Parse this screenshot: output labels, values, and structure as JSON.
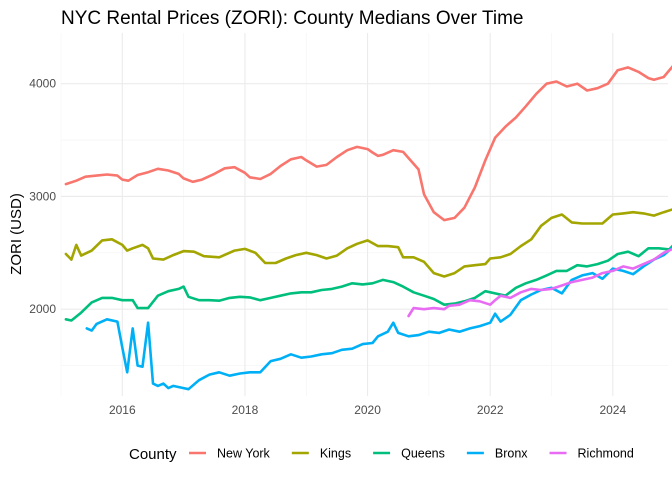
{
  "chart_data": {
    "type": "line",
    "title": "NYC Rental Prices (ZORI): County Medians Over Time",
    "xlabel": "",
    "ylabel": "ZORI (USD)",
    "xlim": [
      2015.0,
      2024.9
    ],
    "ylim": [
      1230,
      4450
    ],
    "x_ticks": [
      2016,
      2018,
      2020,
      2022,
      2024
    ],
    "y_ticks": [
      2000,
      3000,
      4000
    ],
    "grid": true,
    "legend": {
      "title": "County",
      "position": "bottom"
    },
    "series": [
      {
        "name": "New York",
        "color": "#F8766D",
        "points": [
          [
            2015.08,
            3110
          ],
          [
            2015.25,
            3140
          ],
          [
            2015.4,
            3175
          ],
          [
            2015.58,
            3185
          ],
          [
            2015.75,
            3195
          ],
          [
            2015.92,
            3185
          ],
          [
            2016.0,
            3150
          ],
          [
            2016.1,
            3140
          ],
          [
            2016.25,
            3190
          ],
          [
            2016.42,
            3215
          ],
          [
            2016.58,
            3245
          ],
          [
            2016.75,
            3230
          ],
          [
            2016.92,
            3200
          ],
          [
            2017.0,
            3160
          ],
          [
            2017.15,
            3130
          ],
          [
            2017.3,
            3150
          ],
          [
            2017.5,
            3200
          ],
          [
            2017.67,
            3250
          ],
          [
            2017.83,
            3260
          ],
          [
            2018.0,
            3210
          ],
          [
            2018.08,
            3170
          ],
          [
            2018.25,
            3155
          ],
          [
            2018.42,
            3200
          ],
          [
            2018.58,
            3270
          ],
          [
            2018.75,
            3330
          ],
          [
            2018.92,
            3350
          ],
          [
            2019.0,
            3320
          ],
          [
            2019.17,
            3265
          ],
          [
            2019.33,
            3280
          ],
          [
            2019.5,
            3350
          ],
          [
            2019.67,
            3410
          ],
          [
            2019.83,
            3440
          ],
          [
            2020.0,
            3420
          ],
          [
            2020.08,
            3390
          ],
          [
            2020.17,
            3360
          ],
          [
            2020.25,
            3370
          ],
          [
            2020.42,
            3410
          ],
          [
            2020.58,
            3395
          ],
          [
            2020.67,
            3340
          ],
          [
            2020.83,
            3240
          ],
          [
            2020.92,
            3020
          ],
          [
            2021.08,
            2860
          ],
          [
            2021.25,
            2790
          ],
          [
            2021.42,
            2810
          ],
          [
            2021.58,
            2900
          ],
          [
            2021.75,
            3080
          ],
          [
            2021.92,
            3320
          ],
          [
            2022.08,
            3520
          ],
          [
            2022.25,
            3620
          ],
          [
            2022.42,
            3700
          ],
          [
            2022.58,
            3800
          ],
          [
            2022.75,
            3910
          ],
          [
            2022.92,
            4000
          ],
          [
            2023.08,
            4020
          ],
          [
            2023.25,
            3975
          ],
          [
            2023.42,
            4000
          ],
          [
            2023.58,
            3940
          ],
          [
            2023.75,
            3960
          ],
          [
            2023.92,
            4000
          ],
          [
            2024.08,
            4120
          ],
          [
            2024.25,
            4145
          ],
          [
            2024.42,
            4105
          ],
          [
            2024.58,
            4050
          ],
          [
            2024.67,
            4035
          ],
          [
            2024.83,
            4060
          ],
          [
            2025.0,
            4170
          ],
          [
            2025.17,
            4240
          ],
          [
            2025.33,
            4290
          ]
        ]
      },
      {
        "name": "Kings",
        "color": "#A3A500",
        "points": [
          [
            2015.08,
            2490
          ],
          [
            2015.17,
            2440
          ],
          [
            2015.25,
            2570
          ],
          [
            2015.33,
            2475
          ],
          [
            2015.5,
            2520
          ],
          [
            2015.67,
            2610
          ],
          [
            2015.83,
            2620
          ],
          [
            2016.0,
            2570
          ],
          [
            2016.08,
            2520
          ],
          [
            2016.17,
            2540
          ],
          [
            2016.33,
            2570
          ],
          [
            2016.42,
            2540
          ],
          [
            2016.5,
            2450
          ],
          [
            2016.67,
            2440
          ],
          [
            2016.83,
            2480
          ],
          [
            2017.0,
            2515
          ],
          [
            2017.17,
            2510
          ],
          [
            2017.33,
            2470
          ],
          [
            2017.58,
            2460
          ],
          [
            2017.83,
            2520
          ],
          [
            2018.0,
            2535
          ],
          [
            2018.17,
            2500
          ],
          [
            2018.33,
            2410
          ],
          [
            2018.5,
            2410
          ],
          [
            2018.67,
            2450
          ],
          [
            2018.83,
            2480
          ],
          [
            2019.0,
            2500
          ],
          [
            2019.17,
            2480
          ],
          [
            2019.33,
            2450
          ],
          [
            2019.5,
            2475
          ],
          [
            2019.67,
            2540
          ],
          [
            2019.83,
            2580
          ],
          [
            2020.0,
            2610
          ],
          [
            2020.17,
            2560
          ],
          [
            2020.33,
            2560
          ],
          [
            2020.5,
            2550
          ],
          [
            2020.58,
            2460
          ],
          [
            2020.75,
            2460
          ],
          [
            2020.92,
            2420
          ],
          [
            2021.08,
            2320
          ],
          [
            2021.25,
            2290
          ],
          [
            2021.42,
            2320
          ],
          [
            2021.58,
            2380
          ],
          [
            2021.75,
            2390
          ],
          [
            2021.92,
            2400
          ],
          [
            2022.0,
            2450
          ],
          [
            2022.17,
            2460
          ],
          [
            2022.33,
            2490
          ],
          [
            2022.5,
            2560
          ],
          [
            2022.67,
            2620
          ],
          [
            2022.83,
            2740
          ],
          [
            2023.0,
            2810
          ],
          [
            2023.17,
            2840
          ],
          [
            2023.33,
            2770
          ],
          [
            2023.5,
            2760
          ],
          [
            2023.67,
            2760
          ],
          [
            2023.83,
            2760
          ],
          [
            2024.0,
            2840
          ],
          [
            2024.17,
            2850
          ],
          [
            2024.33,
            2860
          ],
          [
            2024.5,
            2850
          ],
          [
            2024.67,
            2830
          ],
          [
            2024.83,
            2860
          ],
          [
            2025.0,
            2890
          ],
          [
            2025.17,
            2920
          ],
          [
            2025.33,
            2940
          ],
          [
            2025.42,
            2960
          ]
        ]
      },
      {
        "name": "Queens",
        "color": "#00BF7D",
        "points": [
          [
            2015.08,
            1910
          ],
          [
            2015.17,
            1900
          ],
          [
            2015.33,
            1970
          ],
          [
            2015.5,
            2060
          ],
          [
            2015.67,
            2100
          ],
          [
            2015.83,
            2100
          ],
          [
            2016.0,
            2080
          ],
          [
            2016.17,
            2080
          ],
          [
            2016.25,
            2010
          ],
          [
            2016.42,
            2010
          ],
          [
            2016.58,
            2120
          ],
          [
            2016.75,
            2160
          ],
          [
            2016.92,
            2180
          ],
          [
            2017.0,
            2200
          ],
          [
            2017.08,
            2110
          ],
          [
            2017.25,
            2080
          ],
          [
            2017.42,
            2080
          ],
          [
            2017.58,
            2075
          ],
          [
            2017.75,
            2100
          ],
          [
            2017.92,
            2110
          ],
          [
            2018.08,
            2105
          ],
          [
            2018.25,
            2080
          ],
          [
            2018.42,
            2100
          ],
          [
            2018.58,
            2120
          ],
          [
            2018.75,
            2140
          ],
          [
            2018.92,
            2150
          ],
          [
            2019.08,
            2150
          ],
          [
            2019.25,
            2170
          ],
          [
            2019.42,
            2180
          ],
          [
            2019.58,
            2200
          ],
          [
            2019.75,
            2230
          ],
          [
            2019.92,
            2220
          ],
          [
            2020.08,
            2230
          ],
          [
            2020.25,
            2260
          ],
          [
            2020.42,
            2240
          ],
          [
            2020.58,
            2200
          ],
          [
            2020.75,
            2150
          ],
          [
            2020.92,
            2120
          ],
          [
            2021.08,
            2090
          ],
          [
            2021.25,
            2040
          ],
          [
            2021.42,
            2050
          ],
          [
            2021.58,
            2070
          ],
          [
            2021.75,
            2100
          ],
          [
            2021.92,
            2160
          ],
          [
            2022.08,
            2140
          ],
          [
            2022.25,
            2120
          ],
          [
            2022.42,
            2190
          ],
          [
            2022.58,
            2230
          ],
          [
            2022.75,
            2260
          ],
          [
            2022.92,
            2300
          ],
          [
            2023.08,
            2340
          ],
          [
            2023.25,
            2340
          ],
          [
            2023.42,
            2390
          ],
          [
            2023.58,
            2380
          ],
          [
            2023.75,
            2400
          ],
          [
            2023.92,
            2430
          ],
          [
            2024.08,
            2490
          ],
          [
            2024.25,
            2510
          ],
          [
            2024.42,
            2470
          ],
          [
            2024.58,
            2540
          ],
          [
            2024.75,
            2540
          ],
          [
            2024.92,
            2530
          ],
          [
            2025.08,
            2620
          ],
          [
            2025.25,
            2640
          ],
          [
            2025.42,
            2660
          ]
        ]
      },
      {
        "name": "Bronx",
        "color": "#00B0F6",
        "points": [
          [
            2015.42,
            1830
          ],
          [
            2015.5,
            1810
          ],
          [
            2015.58,
            1870
          ],
          [
            2015.75,
            1910
          ],
          [
            2015.92,
            1890
          ],
          [
            2016.0,
            1660
          ],
          [
            2016.08,
            1440
          ],
          [
            2016.17,
            1830
          ],
          [
            2016.25,
            1500
          ],
          [
            2016.33,
            1490
          ],
          [
            2016.42,
            1880
          ],
          [
            2016.5,
            1340
          ],
          [
            2016.58,
            1320
          ],
          [
            2016.67,
            1340
          ],
          [
            2016.75,
            1300
          ],
          [
            2016.83,
            1320
          ],
          [
            2017.0,
            1300
          ],
          [
            2017.08,
            1290
          ],
          [
            2017.25,
            1370
          ],
          [
            2017.42,
            1420
          ],
          [
            2017.58,
            1440
          ],
          [
            2017.75,
            1410
          ],
          [
            2017.92,
            1430
          ],
          [
            2018.08,
            1440
          ],
          [
            2018.25,
            1440
          ],
          [
            2018.42,
            1540
          ],
          [
            2018.58,
            1560
          ],
          [
            2018.75,
            1600
          ],
          [
            2018.92,
            1570
          ],
          [
            2019.08,
            1580
          ],
          [
            2019.25,
            1600
          ],
          [
            2019.42,
            1610
          ],
          [
            2019.58,
            1640
          ],
          [
            2019.75,
            1650
          ],
          [
            2019.92,
            1690
          ],
          [
            2020.08,
            1700
          ],
          [
            2020.17,
            1760
          ],
          [
            2020.33,
            1800
          ],
          [
            2020.42,
            1880
          ],
          [
            2020.5,
            1790
          ],
          [
            2020.67,
            1760
          ],
          [
            2020.83,
            1770
          ],
          [
            2021.0,
            1800
          ],
          [
            2021.17,
            1790
          ],
          [
            2021.33,
            1820
          ],
          [
            2021.5,
            1800
          ],
          [
            2021.67,
            1830
          ],
          [
            2021.83,
            1850
          ],
          [
            2022.0,
            1880
          ],
          [
            2022.08,
            1960
          ],
          [
            2022.17,
            1890
          ],
          [
            2022.33,
            1950
          ],
          [
            2022.5,
            2080
          ],
          [
            2022.67,
            2130
          ],
          [
            2022.83,
            2170
          ],
          [
            2023.0,
            2190
          ],
          [
            2023.17,
            2140
          ],
          [
            2023.33,
            2260
          ],
          [
            2023.5,
            2300
          ],
          [
            2023.67,
            2320
          ],
          [
            2023.83,
            2270
          ],
          [
            2024.0,
            2360
          ],
          [
            2024.17,
            2340
          ],
          [
            2024.33,
            2310
          ],
          [
            2024.5,
            2380
          ],
          [
            2024.67,
            2440
          ],
          [
            2024.83,
            2480
          ],
          [
            2025.0,
            2560
          ],
          [
            2025.17,
            2510
          ],
          [
            2025.33,
            2510
          ],
          [
            2025.42,
            2490
          ]
        ]
      },
      {
        "name": "Richmond",
        "color": "#E76BF3",
        "points": [
          [
            2020.67,
            1940
          ],
          [
            2020.75,
            2010
          ],
          [
            2020.92,
            2000
          ],
          [
            2021.08,
            2010
          ],
          [
            2021.25,
            2000
          ],
          [
            2021.33,
            2030
          ],
          [
            2021.5,
            2040
          ],
          [
            2021.67,
            2080
          ],
          [
            2021.83,
            2070
          ],
          [
            2022.0,
            2040
          ],
          [
            2022.08,
            2080
          ],
          [
            2022.17,
            2120
          ],
          [
            2022.33,
            2100
          ],
          [
            2022.5,
            2150
          ],
          [
            2022.67,
            2180
          ],
          [
            2022.83,
            2170
          ],
          [
            2023.0,
            2180
          ],
          [
            2023.17,
            2210
          ],
          [
            2023.33,
            2240
          ],
          [
            2023.5,
            2260
          ],
          [
            2023.67,
            2280
          ],
          [
            2023.83,
            2320
          ],
          [
            2024.0,
            2340
          ],
          [
            2024.17,
            2380
          ],
          [
            2024.33,
            2360
          ],
          [
            2024.5,
            2400
          ],
          [
            2024.67,
            2440
          ],
          [
            2024.83,
            2500
          ],
          [
            2025.0,
            2540
          ],
          [
            2025.17,
            2570
          ],
          [
            2025.33,
            2590
          ]
        ]
      }
    ]
  }
}
